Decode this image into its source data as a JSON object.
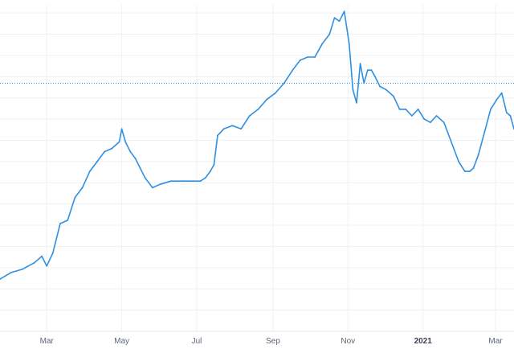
{
  "chart_data": {
    "type": "line",
    "title": "",
    "xlabel": "",
    "ylabel": "",
    "x_ticks": [
      {
        "label": "Mar",
        "date": "2020-03-01",
        "bold": false
      },
      {
        "label": "May",
        "date": "2020-05-01",
        "bold": false
      },
      {
        "label": "Jul",
        "date": "2020-07-01",
        "bold": false
      },
      {
        "label": "Sep",
        "date": "2020-09-01",
        "bold": false
      },
      {
        "label": "Nov",
        "date": "2020-11-01",
        "bold": false
      },
      {
        "label": "2021",
        "date": "2021-01-01",
        "bold": true
      },
      {
        "label": "Mar",
        "date": "2021-03-01",
        "bold": false
      }
    ],
    "xlim": [
      "2020-01-23",
      "2021-03-16"
    ],
    "ylim": [
      0,
      100
    ],
    "grid": true,
    "reference_line": {
      "y": 76,
      "style": "dotted"
    },
    "series": [
      {
        "color": "#2f8fe0",
        "x": [
          "2020-01-23",
          "2020-02-01",
          "2020-02-10",
          "2020-02-20",
          "2020-02-26",
          "2020-03-01",
          "2020-03-06",
          "2020-03-12",
          "2020-03-18",
          "2020-03-24",
          "2020-03-30",
          "2020-04-05",
          "2020-04-11",
          "2020-04-17",
          "2020-04-23",
          "2020-04-29",
          "2020-05-01",
          "2020-05-04",
          "2020-05-08",
          "2020-05-12",
          "2020-05-16",
          "2020-05-20",
          "2020-05-26",
          "2020-06-01",
          "2020-06-10",
          "2020-06-20",
          "2020-06-28",
          "2020-07-04",
          "2020-07-08",
          "2020-07-12",
          "2020-07-15",
          "2020-07-18",
          "2020-07-23",
          "2020-07-30",
          "2020-08-06",
          "2020-08-13",
          "2020-08-20",
          "2020-08-27",
          "2020-09-03",
          "2020-09-10",
          "2020-09-17",
          "2020-09-23",
          "2020-09-29",
          "2020-10-05",
          "2020-10-11",
          "2020-10-17",
          "2020-10-21",
          "2020-10-25",
          "2020-10-29",
          "2020-11-02",
          "2020-11-05",
          "2020-11-08",
          "2020-11-11",
          "2020-11-14",
          "2020-11-17",
          "2020-11-20",
          "2020-11-23",
          "2020-11-27",
          "2020-12-02",
          "2020-12-08",
          "2020-12-13",
          "2020-12-18",
          "2020-12-23",
          "2020-12-28",
          "2021-01-02",
          "2021-01-07",
          "2021-01-12",
          "2021-01-18",
          "2021-01-24",
          "2021-01-30",
          "2021-02-04",
          "2021-02-08",
          "2021-02-11",
          "2021-02-15",
          "2021-02-20",
          "2021-02-25",
          "2021-03-02",
          "2021-03-06",
          "2021-03-10",
          "2021-03-13",
          "2021-03-16"
        ],
        "y": [
          16,
          18,
          19,
          21,
          23,
          20,
          24,
          33,
          34,
          41,
          44,
          49,
          52,
          55,
          56,
          58,
          62,
          58,
          55,
          53,
          50,
          47,
          44,
          45,
          46,
          46,
          46,
          46,
          47,
          49,
          51,
          60,
          62,
          63,
          62,
          66,
          68,
          71,
          73,
          76,
          80,
          83,
          84,
          84,
          88,
          91,
          96,
          95,
          98,
          88,
          74,
          70,
          82,
          76,
          80,
          80,
          78,
          75,
          74,
          72,
          68,
          68,
          66,
          68,
          65,
          64,
          66,
          64,
          58,
          52,
          49,
          49,
          50,
          54,
          61,
          68,
          71,
          73,
          67,
          66,
          62
        ]
      }
    ]
  }
}
